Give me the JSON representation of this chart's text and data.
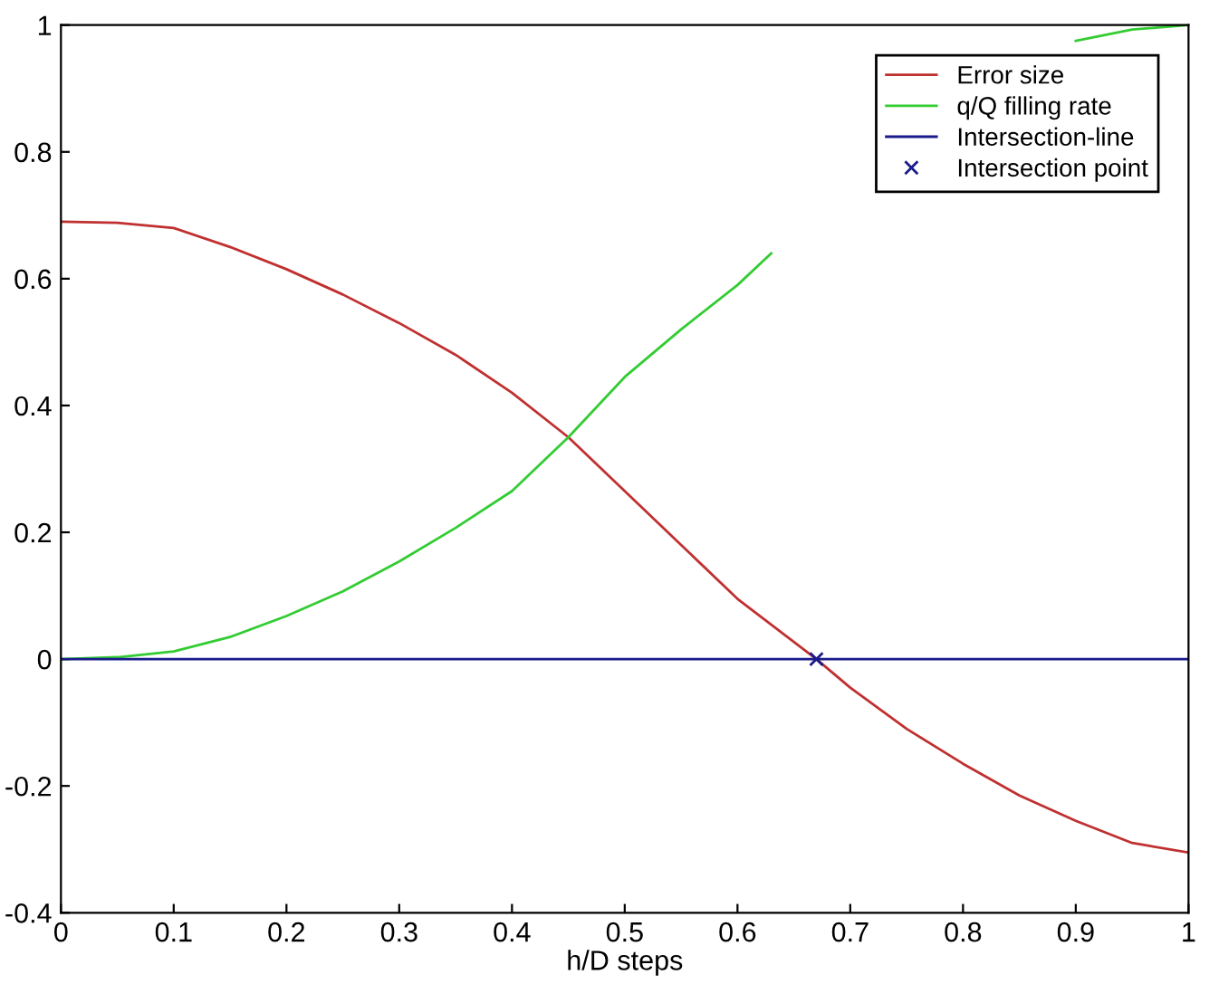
{
  "chart_data": {
    "type": "line",
    "xlabel": "h/D steps",
    "xlim": [
      0,
      1
    ],
    "ylim": [
      -0.4,
      1
    ],
    "xticks": [
      0,
      0.1,
      0.2,
      0.3,
      0.4,
      0.5,
      0.6,
      0.7,
      0.8,
      0.9,
      1
    ],
    "yticks": [
      -0.4,
      -0.2,
      0,
      0.2,
      0.4,
      0.6,
      0.8,
      1
    ],
    "grid": false,
    "legend": "top right",
    "line_style": "solid",
    "series": [
      {
        "name": "Error size",
        "color": "#c03030",
        "marker": "none",
        "x": [
          0,
          0.05,
          0.1,
          0.15,
          0.2,
          0.25,
          0.3,
          0.35,
          0.4,
          0.45,
          0.5,
          0.55,
          0.6,
          0.67,
          0.7,
          0.75,
          0.8,
          0.85,
          0.9,
          0.95,
          1
        ],
        "values": [
          0.69,
          0.688,
          0.68,
          0.65,
          0.615,
          0.575,
          0.53,
          0.48,
          0.42,
          0.35,
          0.265,
          0.18,
          0.095,
          0,
          -0.045,
          -0.11,
          -0.165,
          -0.215,
          -0.255,
          -0.29,
          -0.305
        ]
      },
      {
        "name": "q/Q filling rate",
        "color": "#33cc33",
        "marker": "none",
        "x": [
          0,
          0.05,
          0.1,
          0.15,
          0.2,
          0.25,
          0.3,
          0.35,
          0.4,
          0.45,
          0.5,
          0.55,
          0.6,
          0.63,
          0.7,
          0.8,
          0.9,
          0.95,
          1
        ],
        "values": [
          0,
          0.003,
          0.012,
          0.035,
          0.068,
          0.107,
          0.154,
          0.207,
          0.265,
          0.35,
          0.445,
          0.52,
          0.59,
          0.64,
          null,
          null,
          0.975,
          0.993,
          1
        ]
      },
      {
        "name": "Intersection-line",
        "color": "#1a1a8c",
        "marker": "none",
        "x": [
          0,
          1
        ],
        "values": [
          0,
          0
        ]
      },
      {
        "name": "Intersection point",
        "color": "#1a1a8c",
        "type": "scatter",
        "marker": "cross",
        "x": [
          0.67
        ],
        "values": [
          0
        ]
      }
    ]
  }
}
